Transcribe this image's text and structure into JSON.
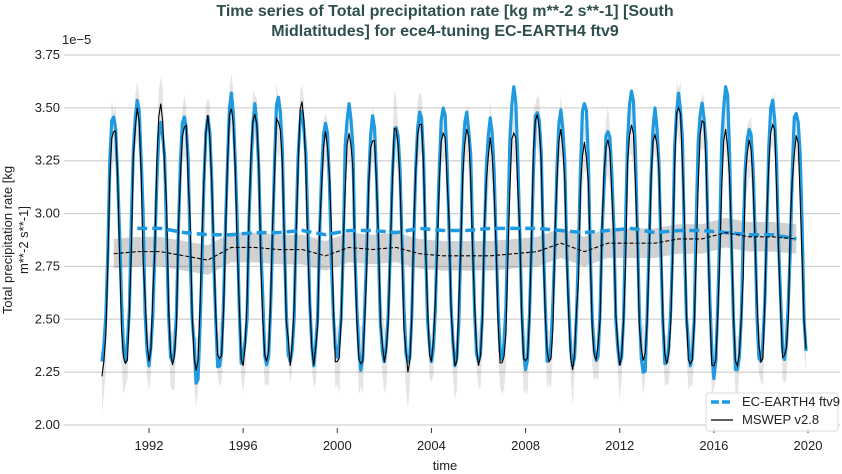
{
  "chart_data": {
    "type": "line",
    "title_lines": [
      "Time series of Total precipitation rate [kg m**-2 s**-1] [South",
      "Midlatitudes] for ece4-tuning EC-EARTH4 ftv9"
    ],
    "xlabel": "time",
    "ylabel_lines": [
      "Total precipitation rate [kg",
      "m**-2 s**-1]"
    ],
    "y_offset_label": "1e−5",
    "xlim": [
      1988.4,
      2021.4
    ],
    "ylim": [
      1.97,
      3.8
    ],
    "yticks": [
      "2.00",
      "2.25",
      "2.50",
      "2.75",
      "3.00",
      "3.25",
      "3.50",
      "3.75"
    ],
    "ytick_values": [
      2.0,
      2.25,
      2.5,
      2.75,
      3.0,
      3.25,
      3.5,
      3.75
    ],
    "xticks": [
      "1992",
      "1996",
      "2000",
      "2004",
      "2008",
      "2012",
      "2016",
      "2020"
    ],
    "xtick_values": [
      1992,
      1996,
      2000,
      2004,
      2008,
      2012,
      2016,
      2020
    ],
    "grid": "horizontal",
    "legend_placement": "lower-right",
    "years": [
      1990,
      1991,
      1992,
      1993,
      1994,
      1995,
      1996,
      1997,
      1998,
      1999,
      2000,
      2001,
      2002,
      2003,
      2004,
      2005,
      2006,
      2007,
      2008,
      2009,
      2010,
      2011,
      2012,
      2013,
      2014,
      2015,
      2016,
      2017,
      2018,
      2019
    ],
    "series": [
      {
        "name": "EC-EARTH4 ftv9",
        "color": "#1f9ae0",
        "annual_max": [
          3.48,
          3.55,
          3.46,
          3.48,
          3.48,
          3.57,
          3.52,
          3.55,
          3.5,
          3.45,
          3.52,
          3.47,
          3.43,
          3.48,
          3.52,
          3.48,
          3.46,
          3.6,
          3.5,
          3.49,
          3.52,
          3.41,
          3.58,
          3.5,
          3.57,
          3.55,
          3.6,
          3.42,
          3.55,
          3.5
        ],
        "annual_min": [
          2.3,
          2.3,
          2.28,
          2.3,
          2.17,
          2.25,
          2.3,
          2.28,
          2.3,
          2.28,
          2.3,
          2.25,
          2.3,
          2.28,
          2.3,
          2.28,
          2.3,
          2.28,
          2.26,
          2.3,
          2.28,
          2.3,
          2.28,
          2.22,
          2.3,
          2.28,
          2.22,
          2.25,
          2.3,
          2.3
        ],
        "running_mean": [
          null,
          2.93,
          2.93,
          2.91,
          2.9,
          2.9,
          2.91,
          2.91,
          2.92,
          2.9,
          2.92,
          2.92,
          2.91,
          2.93,
          2.92,
          2.92,
          2.93,
          2.93,
          2.93,
          2.92,
          2.91,
          2.92,
          2.93,
          2.91,
          2.92,
          2.92,
          2.91,
          2.9,
          2.9,
          2.88
        ]
      },
      {
        "name": "MSWEP v2.8",
        "color": "#000000",
        "annual_max": [
          3.42,
          3.5,
          3.52,
          3.44,
          3.47,
          3.5,
          3.47,
          3.47,
          3.53,
          3.42,
          3.4,
          3.38,
          3.43,
          3.45,
          3.38,
          3.4,
          3.36,
          3.4,
          3.5,
          3.4,
          3.35,
          3.38,
          3.42,
          3.4,
          3.5,
          3.45,
          3.4,
          3.38,
          3.42,
          3.37
        ],
        "annual_min": [
          2.23,
          2.28,
          2.3,
          2.28,
          2.25,
          2.28,
          2.28,
          2.3,
          2.28,
          2.27,
          2.3,
          2.28,
          2.28,
          2.25,
          2.3,
          2.28,
          2.28,
          2.26,
          2.28,
          2.3,
          2.26,
          2.28,
          2.28,
          2.27,
          2.28,
          2.26,
          2.28,
          2.28,
          2.3,
          2.32
        ],
        "running_mean": [
          2.81,
          2.82,
          2.82,
          2.8,
          2.78,
          2.84,
          2.84,
          2.83,
          2.83,
          2.8,
          2.84,
          2.83,
          2.84,
          2.81,
          2.8,
          2.8,
          2.8,
          2.81,
          2.82,
          2.86,
          2.82,
          2.86,
          2.86,
          2.86,
          2.88,
          2.88,
          2.91,
          2.89,
          2.89,
          2.88
        ],
        "running_band_halfwidth": 0.07
      }
    ]
  }
}
